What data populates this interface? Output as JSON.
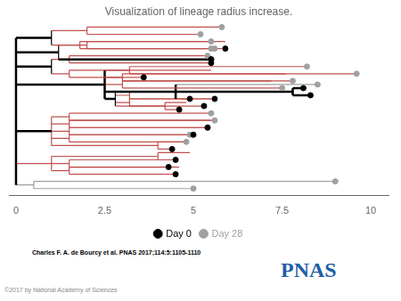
{
  "chart_data": {
    "type": "scatter",
    "title": "Visualization of lineage radius increase.",
    "annotations": [
      {
        "text": "Charles F. A. de Bourcy et al. PNAS 2017;114:5:1105-1110"
      },
      {
        "text": "PNAS",
        "color": "#1f5fa6"
      },
      {
        "text": "©2017 by National Academy of Sciences"
      }
    ],
    "xlim": [
      -0.2,
      10.5
    ],
    "ylim": [
      0.0,
      24.0
    ],
    "xticks": [
      0.0,
      2.5,
      5.0,
      7.5,
      10.0
    ],
    "tick_labels": "x",
    "grid": false,
    "legend": "bottom",
    "series": [
      {
        "name": "Day 0",
        "color": "#000000",
        "marker": "circle",
        "values": [
          [
            5.5,
            19.0
          ],
          [
            5.9,
            20.5
          ],
          [
            5.5,
            18.5
          ],
          [
            5.5,
            19.0
          ],
          [
            3.6,
            16.5
          ],
          [
            8.3,
            14.0
          ],
          [
            8.1,
            15.0
          ],
          [
            4.9,
            13.5
          ],
          [
            5.6,
            13.5
          ],
          [
            5.3,
            12.5
          ],
          [
            4.6,
            12.0
          ],
          [
            5.0,
            8.5
          ],
          [
            5.4,
            9.5
          ],
          [
            4.4,
            6.5
          ],
          [
            4.5,
            5.0
          ],
          [
            4.3,
            4.0
          ],
          [
            4.5,
            3.0
          ]
        ]
      },
      {
        "name": "Day 28",
        "color": "#a0a0a0",
        "marker": "circle",
        "values": [
          [
            5.2,
            22.5
          ],
          [
            5.8,
            23.5
          ],
          [
            5.5,
            20.5
          ],
          [
            5.4,
            19.5
          ],
          [
            5.5,
            21.5
          ],
          [
            5.6,
            20.5
          ],
          [
            9.6,
            17.0
          ],
          [
            8.2,
            18.0
          ],
          [
            7.8,
            16.0
          ],
          [
            7.5,
            15.0
          ],
          [
            8.5,
            15.5
          ],
          [
            5.5,
            11.5
          ],
          [
            5.6,
            10.5
          ],
          [
            5.4,
            9.5
          ],
          [
            4.9,
            8.5
          ],
          [
            4.8,
            7.5
          ],
          [
            9.0,
            2.0
          ],
          [
            5.0,
            1.0
          ]
        ]
      }
    ],
    "segments": [
      {
        "x1": 0.0,
        "y1": 1.5,
        "x2": 0.0,
        "y2": 22.0,
        "color": "#000000",
        "line_style": "thick"
      },
      {
        "x1": 0.0,
        "y1": 22.0,
        "x2": 1.0,
        "y2": 22.0,
        "color": "#000000",
        "line_style": "thick"
      },
      {
        "x1": 1.0,
        "y1": 21.0,
        "x2": 1.0,
        "y2": 23.0,
        "color": "#000000",
        "line_style": "thin"
      },
      {
        "x1": 1.0,
        "y1": 23.0,
        "x2": 2.0,
        "y2": 23.0,
        "color": "#c0504d",
        "line_style": "thin"
      },
      {
        "x1": 2.0,
        "y1": 22.5,
        "x2": 2.0,
        "y2": 23.5,
        "color": "#c0504d",
        "line_style": "thin"
      },
      {
        "x1": 2.0,
        "y1": 22.5,
        "x2": 5.2,
        "y2": 22.5,
        "color": "#c0504d",
        "line_style": "thin"
      },
      {
        "x1": 2.0,
        "y1": 23.5,
        "x2": 5.8,
        "y2": 23.5,
        "color": "#c0504d",
        "line_style": "thin"
      },
      {
        "x1": 1.0,
        "y1": 21.0,
        "x2": 2.0,
        "y2": 21.0,
        "color": "#c0504d",
        "line_style": "thin"
      },
      {
        "x1": 2.0,
        "y1": 20.5,
        "x2": 2.0,
        "y2": 21.5,
        "color": "#c0504d",
        "line_style": "thin"
      },
      {
        "x1": 2.0,
        "y1": 20.5,
        "x2": 5.5,
        "y2": 20.5,
        "color": "#c0504d",
        "line_style": "thin"
      },
      {
        "x1": 2.0,
        "y1": 21.5,
        "x2": 5.9,
        "y2": 21.5,
        "color": "#c0504d",
        "line_style": "thin"
      },
      {
        "x1": 0.0,
        "y1": 20.0,
        "x2": 1.2,
        "y2": 20.0,
        "color": "#000000",
        "line_style": "thick"
      },
      {
        "x1": 1.2,
        "y1": 19.0,
        "x2": 1.2,
        "y2": 21.0,
        "color": "#000000",
        "line_style": "thin"
      },
      {
        "x1": 1.2,
        "y1": 19.0,
        "x2": 5.5,
        "y2": 19.0,
        "color": "#000000",
        "line_style": "thick"
      },
      {
        "x1": 1.2,
        "y1": 21.0,
        "x2": 1.8,
        "y2": 21.0,
        "color": "#c0504d",
        "line_style": "thin"
      },
      {
        "x1": 1.8,
        "y1": 20.5,
        "x2": 1.8,
        "y2": 21.5,
        "color": "#c0504d",
        "line_style": "thin"
      },
      {
        "x1": 1.8,
        "y1": 20.5,
        "x2": 5.8,
        "y2": 20.5,
        "color": "#c0504d",
        "line_style": "thin"
      },
      {
        "x1": 1.8,
        "y1": 21.5,
        "x2": 5.6,
        "y2": 21.5,
        "color": "#c0504d",
        "line_style": "thin"
      },
      {
        "x1": 0.0,
        "y1": 18.0,
        "x2": 1.0,
        "y2": 18.0,
        "color": "#000000",
        "line_style": "thick"
      },
      {
        "x1": 1.0,
        "y1": 17.0,
        "x2": 1.0,
        "y2": 19.0,
        "color": "#000000",
        "line_style": "thin"
      },
      {
        "x1": 1.0,
        "y1": 17.0,
        "x2": 1.5,
        "y2": 17.0,
        "color": "#c0504d",
        "line_style": "thin"
      },
      {
        "x1": 1.5,
        "y1": 16.5,
        "x2": 1.5,
        "y2": 17.5,
        "color": "#c0504d",
        "line_style": "thin"
      },
      {
        "x1": 1.5,
        "y1": 16.5,
        "x2": 3.6,
        "y2": 16.5,
        "color": "#c0504d",
        "line_style": "thin"
      },
      {
        "x1": 1.5,
        "y1": 17.5,
        "x2": 5.5,
        "y2": 17.5,
        "color": "#c0504d",
        "line_style": "thin"
      },
      {
        "x1": 1.0,
        "y1": 19.0,
        "x2": 1.5,
        "y2": 19.0,
        "color": "#c0504d",
        "line_style": "thin"
      },
      {
        "x1": 1.5,
        "y1": 18.5,
        "x2": 1.5,
        "y2": 19.5,
        "color": "#c0504d",
        "line_style": "thin"
      },
      {
        "x1": 1.5,
        "y1": 18.5,
        "x2": 5.5,
        "y2": 18.5,
        "color": "#c0504d",
        "line_style": "thin"
      },
      {
        "x1": 1.5,
        "y1": 19.5,
        "x2": 5.4,
        "y2": 19.5,
        "color": "#c0504d",
        "line_style": "thin"
      },
      {
        "x1": 0.0,
        "y1": 15.5,
        "x2": 2.5,
        "y2": 15.5,
        "color": "#000000",
        "line_style": "thick"
      },
      {
        "x1": 2.5,
        "y1": 13.5,
        "x2": 2.5,
        "y2": 17.5,
        "color": "#000000",
        "line_style": "thick"
      },
      {
        "x1": 2.5,
        "y1": 17.5,
        "x2": 3.2,
        "y2": 17.5,
        "color": "#c0504d",
        "line_style": "thin"
      },
      {
        "x1": 3.2,
        "y1": 17.0,
        "x2": 3.2,
        "y2": 18.0,
        "color": "#c0504d",
        "line_style": "thin"
      },
      {
        "x1": 3.2,
        "y1": 17.0,
        "x2": 9.6,
        "y2": 17.0,
        "color": "#c0504d",
        "line_style": "thin"
      },
      {
        "x1": 3.2,
        "y1": 18.0,
        "x2": 8.2,
        "y2": 18.0,
        "color": "#c0504d",
        "line_style": "thin"
      },
      {
        "x1": 2.5,
        "y1": 16.5,
        "x2": 3.0,
        "y2": 16.5,
        "color": "#c0504d",
        "line_style": "thin"
      },
      {
        "x1": 3.0,
        "y1": 16.0,
        "x2": 3.0,
        "y2": 17.0,
        "color": "#c0504d",
        "line_style": "thin"
      },
      {
        "x1": 3.0,
        "y1": 16.0,
        "x2": 7.8,
        "y2": 16.0,
        "color": "#c0504d",
        "line_style": "thin"
      },
      {
        "x1": 3.0,
        "y1": 17.0,
        "x2": 7.6,
        "y2": 17.0,
        "color": "#c0504d",
        "line_style": "thin"
      },
      {
        "x1": 2.5,
        "y1": 15.5,
        "x2": 3.0,
        "y2": 15.5,
        "color": "#c0504d",
        "line_style": "thin"
      },
      {
        "x1": 3.0,
        "y1": 15.0,
        "x2": 3.0,
        "y2": 16.0,
        "color": "#c0504d",
        "line_style": "thin"
      },
      {
        "x1": 3.0,
        "y1": 15.0,
        "x2": 7.5,
        "y2": 15.0,
        "color": "#c0504d",
        "line_style": "thin"
      },
      {
        "x1": 3.0,
        "y1": 16.0,
        "x2": 7.2,
        "y2": 16.0,
        "color": "#c0504d",
        "line_style": "thin"
      },
      {
        "x1": 2.5,
        "y1": 14.5,
        "x2": 4.5,
        "y2": 14.5,
        "color": "#000000",
        "line_style": "thick"
      },
      {
        "x1": 4.5,
        "y1": 13.5,
        "x2": 4.5,
        "y2": 15.5,
        "color": "#000000",
        "line_style": "thick"
      },
      {
        "x1": 4.5,
        "y1": 15.5,
        "x2": 8.5,
        "y2": 15.5,
        "color": "#a0a0a0",
        "line_style": "thin"
      },
      {
        "x1": 4.5,
        "y1": 14.5,
        "x2": 7.8,
        "y2": 14.5,
        "color": "#000000",
        "line_style": "thick"
      },
      {
        "x1": 7.8,
        "y1": 14.0,
        "x2": 7.8,
        "y2": 15.0,
        "color": "#000000",
        "line_style": "thick"
      },
      {
        "x1": 7.8,
        "y1": 14.0,
        "x2": 8.3,
        "y2": 14.0,
        "color": "#000000",
        "line_style": "thick"
      },
      {
        "x1": 7.8,
        "y1": 15.0,
        "x2": 8.1,
        "y2": 15.0,
        "color": "#000000",
        "line_style": "thick"
      },
      {
        "x1": 4.5,
        "y1": 13.5,
        "x2": 4.9,
        "y2": 13.5,
        "color": "#c0504d",
        "line_style": "thin"
      },
      {
        "x1": 2.5,
        "y1": 13.5,
        "x2": 2.8,
        "y2": 13.5,
        "color": "#000000",
        "line_style": "thick"
      },
      {
        "x1": 2.8,
        "y1": 12.5,
        "x2": 2.8,
        "y2": 14.5,
        "color": "#000000",
        "line_style": "thin"
      },
      {
        "x1": 2.8,
        "y1": 14.0,
        "x2": 3.2,
        "y2": 14.0,
        "color": "#c0504d",
        "line_style": "thin"
      },
      {
        "x1": 3.2,
        "y1": 13.5,
        "x2": 3.2,
        "y2": 14.5,
        "color": "#c0504d",
        "line_style": "thin"
      },
      {
        "x1": 3.2,
        "y1": 13.5,
        "x2": 5.6,
        "y2": 13.5,
        "color": "#c0504d",
        "line_style": "thin"
      },
      {
        "x1": 3.2,
        "y1": 14.5,
        "x2": 5.4,
        "y2": 14.5,
        "color": "#c0504d",
        "line_style": "thin"
      },
      {
        "x1": 2.8,
        "y1": 13.0,
        "x2": 3.2,
        "y2": 13.0,
        "color": "#c0504d",
        "line_style": "thin"
      },
      {
        "x1": 3.2,
        "y1": 12.5,
        "x2": 3.2,
        "y2": 13.5,
        "color": "#c0504d",
        "line_style": "thin"
      },
      {
        "x1": 3.2,
        "y1": 12.5,
        "x2": 5.3,
        "y2": 12.5,
        "color": "#c0504d",
        "line_style": "thin"
      },
      {
        "x1": 3.2,
        "y1": 13.5,
        "x2": 5.5,
        "y2": 13.5,
        "color": "#c0504d",
        "line_style": "thin"
      },
      {
        "x1": 2.8,
        "y1": 12.5,
        "x2": 4.2,
        "y2": 12.5,
        "color": "#c0504d",
        "line_style": "thin"
      },
      {
        "x1": 4.2,
        "y1": 12.0,
        "x2": 4.2,
        "y2": 13.0,
        "color": "#c0504d",
        "line_style": "thin"
      },
      {
        "x1": 4.2,
        "y1": 12.0,
        "x2": 4.6,
        "y2": 12.0,
        "color": "#c0504d",
        "line_style": "thin"
      },
      {
        "x1": 4.2,
        "y1": 13.0,
        "x2": 4.8,
        "y2": 13.0,
        "color": "#c0504d",
        "line_style": "thin"
      },
      {
        "x1": 0.0,
        "y1": 9.0,
        "x2": 1.0,
        "y2": 9.0,
        "color": "#000000",
        "line_style": "thick"
      },
      {
        "x1": 1.0,
        "y1": 7.0,
        "x2": 1.0,
        "y2": 11.0,
        "color": "#c0504d",
        "line_style": "thin"
      },
      {
        "x1": 1.0,
        "y1": 11.0,
        "x2": 1.5,
        "y2": 11.0,
        "color": "#c0504d",
        "line_style": "thin"
      },
      {
        "x1": 1.5,
        "y1": 10.5,
        "x2": 1.5,
        "y2": 11.5,
        "color": "#c0504d",
        "line_style": "thin"
      },
      {
        "x1": 1.5,
        "y1": 10.5,
        "x2": 5.5,
        "y2": 10.5,
        "color": "#c0504d",
        "line_style": "thin"
      },
      {
        "x1": 1.5,
        "y1": 11.5,
        "x2": 5.5,
        "y2": 11.5,
        "color": "#c0504d",
        "line_style": "thin"
      },
      {
        "x1": 1.0,
        "y1": 10.0,
        "x2": 1.5,
        "y2": 10.0,
        "color": "#c0504d",
        "line_style": "thin"
      },
      {
        "x1": 1.5,
        "y1": 9.5,
        "x2": 1.5,
        "y2": 10.5,
        "color": "#c0504d",
        "line_style": "thin"
      },
      {
        "x1": 1.5,
        "y1": 9.5,
        "x2": 5.4,
        "y2": 9.5,
        "color": "#c0504d",
        "line_style": "thin"
      },
      {
        "x1": 1.5,
        "y1": 10.5,
        "x2": 5.6,
        "y2": 10.5,
        "color": "#c0504d",
        "line_style": "thin"
      },
      {
        "x1": 1.0,
        "y1": 9.0,
        "x2": 1.5,
        "y2": 9.0,
        "color": "#c0504d",
        "line_style": "thin"
      },
      {
        "x1": 1.5,
        "y1": 8.5,
        "x2": 1.5,
        "y2": 9.5,
        "color": "#c0504d",
        "line_style": "thin"
      },
      {
        "x1": 1.5,
        "y1": 8.5,
        "x2": 5.0,
        "y2": 8.5,
        "color": "#c0504d",
        "line_style": "thin"
      },
      {
        "x1": 1.5,
        "y1": 9.5,
        "x2": 5.4,
        "y2": 9.5,
        "color": "#c0504d",
        "line_style": "thin"
      },
      {
        "x1": 1.0,
        "y1": 8.0,
        "x2": 1.5,
        "y2": 8.0,
        "color": "#c0504d",
        "line_style": "thin"
      },
      {
        "x1": 1.5,
        "y1": 7.5,
        "x2": 1.5,
        "y2": 8.5,
        "color": "#c0504d",
        "line_style": "thin"
      },
      {
        "x1": 1.5,
        "y1": 7.5,
        "x2": 4.8,
        "y2": 7.5,
        "color": "#c0504d",
        "line_style": "thin"
      },
      {
        "x1": 1.5,
        "y1": 8.5,
        "x2": 4.9,
        "y2": 8.5,
        "color": "#c0504d",
        "line_style": "thin"
      },
      {
        "x1": 1.0,
        "y1": 7.0,
        "x2": 4.0,
        "y2": 7.0,
        "color": "#c0504d",
        "line_style": "thin"
      },
      {
        "x1": 4.0,
        "y1": 6.5,
        "x2": 4.0,
        "y2": 7.5,
        "color": "#c0504d",
        "line_style": "thin"
      },
      {
        "x1": 4.0,
        "y1": 6.5,
        "x2": 4.4,
        "y2": 6.5,
        "color": "#c0504d",
        "line_style": "thin"
      },
      {
        "x1": 4.0,
        "y1": 7.5,
        "x2": 4.8,
        "y2": 7.5,
        "color": "#c0504d",
        "line_style": "thin"
      },
      {
        "x1": 0.0,
        "y1": 4.5,
        "x2": 1.0,
        "y2": 4.5,
        "color": "#c0504d",
        "line_style": "thin"
      },
      {
        "x1": 1.0,
        "y1": 3.5,
        "x2": 1.0,
        "y2": 5.5,
        "color": "#c0504d",
        "line_style": "thin"
      },
      {
        "x1": 1.0,
        "y1": 5.5,
        "x2": 4.0,
        "y2": 5.5,
        "color": "#c0504d",
        "line_style": "thin"
      },
      {
        "x1": 4.0,
        "y1": 5.0,
        "x2": 4.0,
        "y2": 6.0,
        "color": "#c0504d",
        "line_style": "thin"
      },
      {
        "x1": 4.0,
        "y1": 5.0,
        "x2": 4.5,
        "y2": 5.0,
        "color": "#c0504d",
        "line_style": "thin"
      },
      {
        "x1": 4.0,
        "y1": 6.0,
        "x2": 4.9,
        "y2": 6.0,
        "color": "#c0504d",
        "line_style": "thin"
      },
      {
        "x1": 1.0,
        "y1": 4.5,
        "x2": 1.5,
        "y2": 4.5,
        "color": "#c0504d",
        "line_style": "thin"
      },
      {
        "x1": 1.5,
        "y1": 4.0,
        "x2": 1.5,
        "y2": 5.0,
        "color": "#c0504d",
        "line_style": "thin"
      },
      {
        "x1": 1.5,
        "y1": 4.0,
        "x2": 4.3,
        "y2": 4.0,
        "color": "#c0504d",
        "line_style": "thin"
      },
      {
        "x1": 1.5,
        "y1": 5.0,
        "x2": 4.5,
        "y2": 5.0,
        "color": "#c0504d",
        "line_style": "thin"
      },
      {
        "x1": 1.0,
        "y1": 3.5,
        "x2": 1.5,
        "y2": 3.5,
        "color": "#c0504d",
        "line_style": "thin"
      },
      {
        "x1": 1.5,
        "y1": 3.0,
        "x2": 1.5,
        "y2": 4.0,
        "color": "#c0504d",
        "line_style": "thin"
      },
      {
        "x1": 1.5,
        "y1": 3.0,
        "x2": 4.5,
        "y2": 3.0,
        "color": "#c0504d",
        "line_style": "thin"
      },
      {
        "x1": 1.5,
        "y1": 4.0,
        "x2": 4.6,
        "y2": 4.0,
        "color": "#c0504d",
        "line_style": "thin"
      },
      {
        "x1": 0.0,
        "y1": 1.5,
        "x2": 0.5,
        "y2": 1.5,
        "color": "#a0a0a0",
        "line_style": "thin"
      },
      {
        "x1": 0.5,
        "y1": 1.0,
        "x2": 0.5,
        "y2": 2.0,
        "color": "#a0a0a0",
        "line_style": "thin"
      },
      {
        "x1": 0.5,
        "y1": 2.0,
        "x2": 9.0,
        "y2": 2.0,
        "color": "#a0a0a0",
        "line_style": "thin"
      },
      {
        "x1": 0.5,
        "y1": 1.0,
        "x2": 5.0,
        "y2": 1.0,
        "color": "#a0a0a0",
        "line_style": "thin"
      }
    ]
  }
}
